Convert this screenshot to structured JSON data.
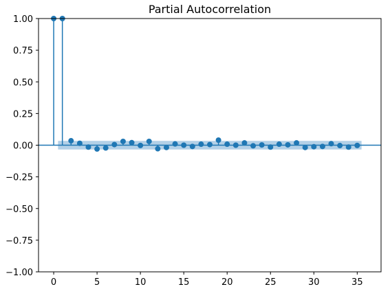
{
  "chart_data": {
    "type": "scatter",
    "title": "Partial Autocorrelation",
    "xlabel": "",
    "ylabel": "",
    "xlim": [
      -1.75,
      37.75
    ],
    "ylim": [
      -1.0,
      1.0
    ],
    "xticks": [
      0,
      5,
      10,
      15,
      20,
      25,
      30,
      35
    ],
    "xtick_labels": [
      "0",
      "5",
      "10",
      "15",
      "20",
      "25",
      "30",
      "35"
    ],
    "yticks": [
      1.0,
      0.75,
      0.5,
      0.25,
      0.0,
      -0.25,
      -0.5,
      -0.75,
      -1.0
    ],
    "ytick_labels": [
      "1.00",
      "0.75",
      "0.50",
      "0.25",
      "0.00",
      "−0.25",
      "−0.50",
      "−0.75",
      "−1.00"
    ],
    "grid": false,
    "legend": "none",
    "confidence_interval": 0.034,
    "x": [
      0,
      1,
      2,
      3,
      4,
      5,
      6,
      7,
      8,
      9,
      10,
      11,
      12,
      13,
      14,
      15,
      16,
      17,
      18,
      19,
      20,
      21,
      22,
      23,
      24,
      25,
      26,
      27,
      28,
      29,
      30,
      31,
      32,
      33,
      34,
      35
    ],
    "values": [
      1.0,
      1.0,
      0.035,
      0.015,
      -0.015,
      -0.03,
      -0.022,
      0.005,
      0.03,
      0.02,
      -0.002,
      0.03,
      -0.028,
      -0.018,
      0.01,
      0.0,
      -0.01,
      0.008,
      0.005,
      0.04,
      0.008,
      0.0,
      0.018,
      -0.005,
      0.002,
      -0.015,
      0.008,
      0.003,
      0.018,
      -0.018,
      -0.012,
      -0.01,
      0.012,
      -0.003,
      -0.015,
      -0.002
    ]
  },
  "colors": {
    "series": "#1f77b4",
    "band": "#a6c8e3",
    "axes": "#000000",
    "background": "#ffffff"
  }
}
